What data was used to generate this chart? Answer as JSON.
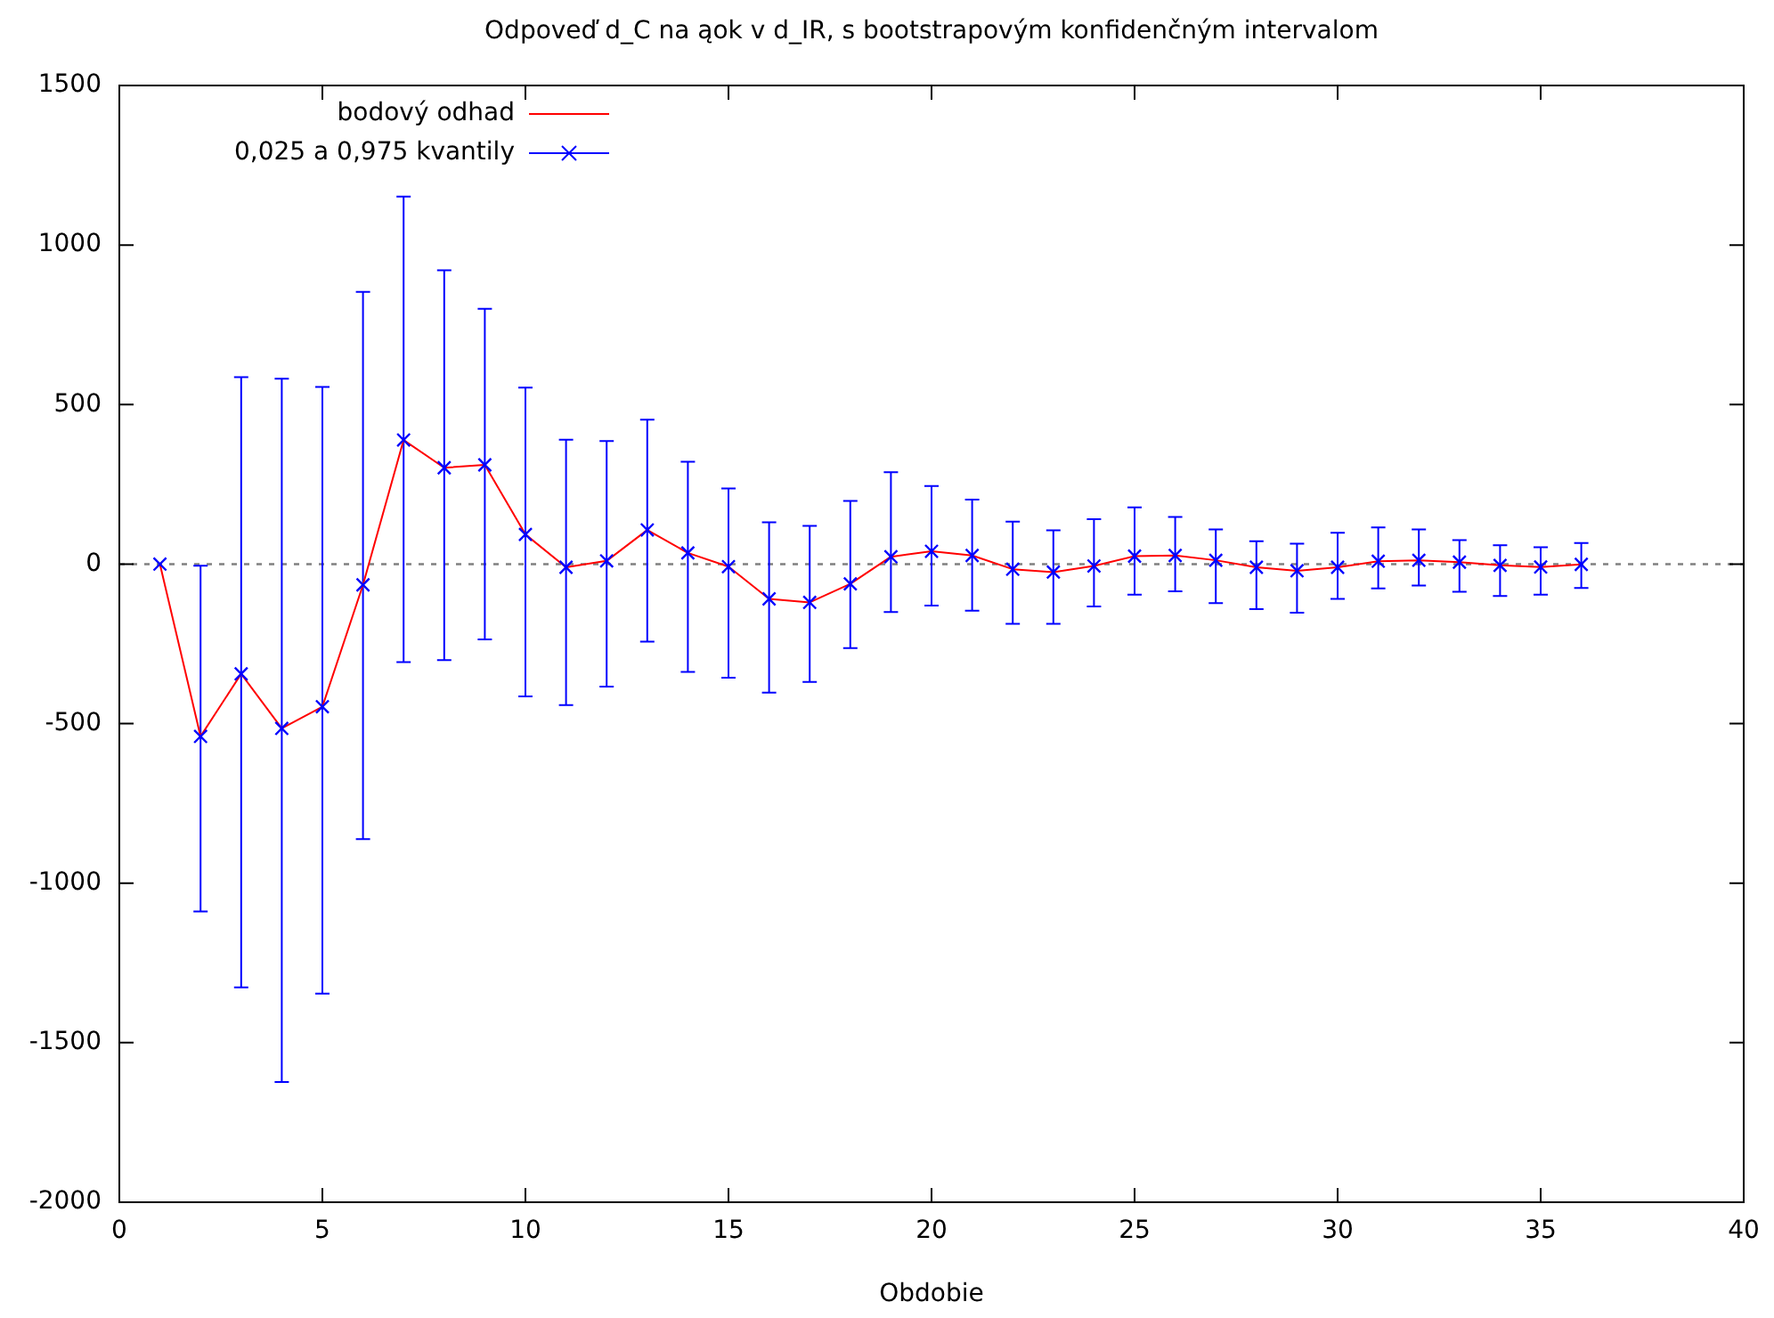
{
  "chart_data": {
    "type": "line",
    "title": "Odpoveď d_C na ąok v d_IR, s bootstrapovým konfidenčným intervalom",
    "xlabel": "Obdobie",
    "x": [
      1,
      2,
      3,
      4,
      5,
      6,
      7,
      8,
      9,
      10,
      11,
      12,
      13,
      14,
      15,
      16,
      17,
      18,
      19,
      20,
      21,
      22,
      23,
      24,
      25,
      26,
      27,
      28,
      29,
      30,
      31,
      32,
      33,
      34,
      35,
      36
    ],
    "xlim": [
      0,
      40
    ],
    "xticks": [
      0,
      5,
      10,
      15,
      20,
      25,
      30,
      35,
      40
    ],
    "ylim": [
      -2000,
      1500
    ],
    "yticks": [
      -2000,
      -1500,
      -1000,
      -500,
      0,
      500,
      1000,
      1500
    ],
    "grid": false,
    "legend": "top left",
    "ref_lines": [
      {
        "axis": "y",
        "value": 0,
        "color": "#808080",
        "line_style": "dotted"
      }
    ],
    "series": [
      {
        "name": "bodový odhad",
        "color": "#ff0000",
        "marker": "none",
        "values": [
          0,
          -540,
          -344,
          -515,
          -447,
          -65,
          389,
          302,
          311,
          93,
          -10,
          10,
          107,
          35,
          -8,
          -109,
          -120,
          -62,
          23,
          40,
          27,
          -16,
          -25,
          -6,
          25,
          27,
          12,
          -10,
          -21,
          -10,
          9,
          12,
          6,
          -4,
          -9,
          -1
        ]
      },
      {
        "name": "0,025 a 0,975 kvantily",
        "type": "scatter",
        "color": "#0000ff",
        "marker": "cross",
        "values": [
          0,
          -540,
          -344,
          -515,
          -447,
          -65,
          389,
          302,
          311,
          93,
          -10,
          10,
          107,
          35,
          -8,
          -109,
          -120,
          -62,
          23,
          40,
          27,
          -16,
          -25,
          -6,
          25,
          27,
          12,
          -10,
          -21,
          -10,
          9,
          12,
          6,
          -4,
          -9,
          -1
        ],
        "errors": [
          null,
          [
            -1089,
            -5
          ],
          [
            -1327,
            586
          ],
          [
            -1623,
            581
          ],
          [
            -1346,
            555
          ],
          [
            -862,
            853
          ],
          [
            -307,
            1152
          ],
          [
            -301,
            921
          ],
          [
            -236,
            800
          ],
          [
            -415,
            553
          ],
          [
            -442,
            390
          ],
          [
            -384,
            386
          ],
          [
            -243,
            453
          ],
          [
            -338,
            321
          ],
          [
            -356,
            237
          ],
          [
            -403,
            131
          ],
          [
            -369,
            120
          ],
          [
            -263,
            198
          ],
          [
            -150,
            288
          ],
          [
            -130,
            245
          ],
          [
            -146,
            202
          ],
          [
            -187,
            133
          ],
          [
            -187,
            106
          ],
          [
            -133,
            141
          ],
          [
            -96,
            178
          ],
          [
            -85,
            148
          ],
          [
            -122,
            109
          ],
          [
            -141,
            72
          ],
          [
            -152,
            64
          ],
          [
            -109,
            98
          ],
          [
            -76,
            115
          ],
          [
            -67,
            109
          ],
          [
            -87,
            75
          ],
          [
            -100,
            59
          ],
          [
            -96,
            53
          ],
          [
            -75,
            66
          ]
        ]
      }
    ]
  }
}
